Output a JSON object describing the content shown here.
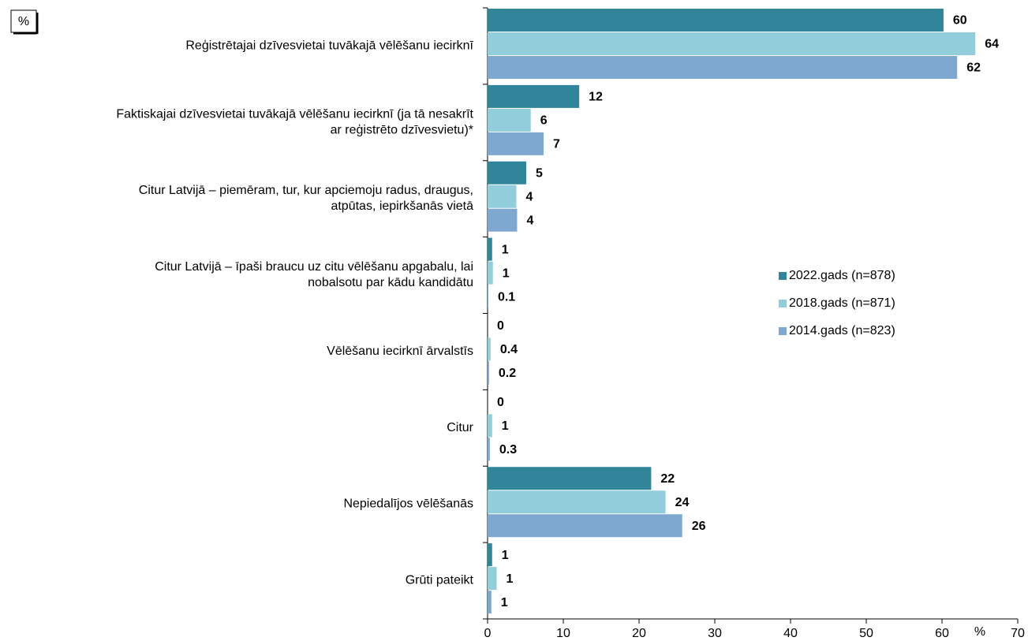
{
  "chart_data": {
    "type": "barh",
    "unit_label": "%",
    "xlabel": "%",
    "categories": [
      "Reģistrētajai dzīvesvietai tuvākajā vēlēšanu iecirknī",
      "Faktiskajai dzīvesvietai tuvākajā vēlēšanu iecirknī (ja tā nesakrīt\nar reģistrēto dzīvesvietu)*",
      "Citur Latvijā – piemēram, tur, kur apciemoju radus, draugus,\natpūtas, iepirkšanās vietā",
      "Citur Latvijā – īpaši braucu uz citu vēlēšanu apgabalu, lai\nnobalsotu par kādu kandidātu",
      "Vēlēšanu iecirknī ārvalstīs",
      "Citur",
      "Nepiedalījos vēlēšanās",
      "Grūti pateikt"
    ],
    "series": [
      {
        "name": "2022.gads (n=878)",
        "color": "#31859b",
        "values": [
          60.2,
          12.1,
          5.1,
          0.6,
          0,
          0,
          21.6,
          0.6
        ],
        "value_labels": [
          "60",
          "12",
          "5",
          "1",
          "0",
          "0",
          "22",
          "1"
        ]
      },
      {
        "name": "2018.gads (n=871)",
        "color": "#92cddc",
        "values": [
          64.4,
          5.7,
          3.8,
          0.7,
          0.4,
          0.6,
          23.5,
          1.2
        ],
        "value_labels": [
          "64",
          "6",
          "4",
          "1",
          "0.4",
          "1",
          "24",
          "1"
        ]
      },
      {
        "name": "2014.gads (n=823)",
        "color": "#7ea8cf",
        "values": [
          62.0,
          7.4,
          3.9,
          0.1,
          0.2,
          0.3,
          25.7,
          0.5
        ],
        "value_labels": [
          "62",
          "7",
          "4",
          "0.1",
          "0.2",
          "0.3",
          "26",
          "1"
        ]
      }
    ],
    "xlim": [
      0,
      70
    ],
    "xticks": [
      0,
      10,
      20,
      30,
      40,
      50,
      60,
      70
    ],
    "grid": false,
    "legend": "right"
  }
}
